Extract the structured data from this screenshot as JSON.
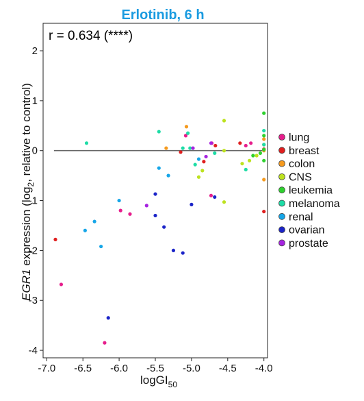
{
  "chart_data": {
    "type": "scatter",
    "title": "Erlotinib, 6 h",
    "title_color": "#1a9be0",
    "annotation": "r = 0.634 (****)",
    "xlabel": {
      "base": "logGI",
      "sub": "50"
    },
    "ylabel": {
      "italic": "EGR1",
      "mid": " expression (log",
      "sub": "2",
      "end": ", relative to control)"
    },
    "xlim": [
      -7.05,
      -3.95
    ],
    "ylim": [
      -4.15,
      2.55
    ],
    "xticks": [
      -7.0,
      -6.5,
      -6.0,
      -5.5,
      -5.0,
      -4.5,
      -4.0
    ],
    "xtick_labels": [
      "-7.0",
      "-6.5",
      "-6.0",
      "-5.5",
      "-5.0",
      "-4.5",
      "-4.0"
    ],
    "yticks": [
      -4,
      -3,
      -2,
      -1,
      0,
      1,
      2
    ],
    "ytick_labels": [
      "-4",
      "-3",
      "-2",
      "-1",
      "0",
      "1",
      "2"
    ],
    "reference_line_y": 0,
    "grid": false,
    "legend_position": "right",
    "series": [
      {
        "name": "lung",
        "color": "#e61e8c",
        "points": [
          [
            -6.8,
            -2.68
          ],
          [
            -6.2,
            -3.85
          ],
          [
            -5.98,
            -1.2
          ],
          [
            -5.85,
            -1.27
          ],
          [
            -5.08,
            0.3
          ],
          [
            -4.72,
            0.15
          ],
          [
            -4.73,
            -0.9
          ],
          [
            -4.25,
            0.1
          ],
          [
            -4.18,
            0.15
          ]
        ]
      },
      {
        "name": "breast",
        "color": "#e01f1f",
        "points": [
          [
            -6.88,
            -1.78
          ],
          [
            -5.15,
            -0.03
          ],
          [
            -4.83,
            -0.22
          ],
          [
            -4.67,
            0.1
          ],
          [
            -4.33,
            0.15
          ],
          [
            -4.0,
            -1.22
          ],
          [
            -4.0,
            0.03
          ]
        ]
      },
      {
        "name": "colon",
        "color": "#f59a1e",
        "points": [
          [
            -5.35,
            0.05
          ],
          [
            -5.07,
            0.48
          ],
          [
            -4.0,
            0.23
          ],
          [
            -4.0,
            0.12
          ],
          [
            -4.0,
            0.0
          ],
          [
            -4.0,
            -0.58
          ]
        ]
      },
      {
        "name": "CNS",
        "color": "#bde21f",
        "points": [
          [
            -4.55,
            0.6
          ],
          [
            -4.55,
            0.0
          ],
          [
            -4.55,
            -1.03
          ],
          [
            -4.85,
            -0.4
          ],
          [
            -4.9,
            -0.53
          ],
          [
            -4.3,
            -0.26
          ],
          [
            -4.2,
            -0.2
          ],
          [
            -4.1,
            -0.1
          ]
        ]
      },
      {
        "name": "leukemia",
        "color": "#2ed12e",
        "points": [
          [
            -4.0,
            0.75
          ],
          [
            -4.0,
            0.3
          ],
          [
            -4.0,
            0.02
          ],
          [
            -4.0,
            -0.2
          ],
          [
            -4.05,
            -0.05
          ],
          [
            -4.15,
            -0.1
          ]
        ]
      },
      {
        "name": "melanoma",
        "color": "#1edca6",
        "points": [
          [
            -6.45,
            0.15
          ],
          [
            -5.45,
            0.38
          ],
          [
            -5.12,
            0.05
          ],
          [
            -5.02,
            0.05
          ],
          [
            -5.05,
            0.35
          ],
          [
            -4.95,
            -0.28
          ],
          [
            -4.68,
            -0.05
          ],
          [
            -4.25,
            -0.38
          ],
          [
            -4.0,
            0.4
          ],
          [
            -4.0,
            0.12
          ]
        ]
      },
      {
        "name": "renal",
        "color": "#16a6e8",
        "points": [
          [
            -6.47,
            -1.6
          ],
          [
            -6.34,
            -1.42
          ],
          [
            -6.25,
            -1.92
          ],
          [
            -6.0,
            -1.0
          ],
          [
            -5.45,
            -0.35
          ],
          [
            -5.32,
            -0.5
          ],
          [
            -4.9,
            -0.17
          ]
        ]
      },
      {
        "name": "ovarian",
        "color": "#1b24c8",
        "points": [
          [
            -6.15,
            -3.35
          ],
          [
            -5.5,
            -0.87
          ],
          [
            -5.5,
            -1.3
          ],
          [
            -5.38,
            -1.53
          ],
          [
            -5.25,
            -2.0
          ],
          [
            -5.12,
            -2.05
          ],
          [
            -5.0,
            -1.08
          ],
          [
            -4.68,
            -0.93
          ]
        ]
      },
      {
        "name": "prostate",
        "color": "#a623e0",
        "points": [
          [
            -5.62,
            -1.1
          ],
          [
            -4.98,
            0.05
          ],
          [
            -4.8,
            -0.12
          ],
          [
            -4.73,
            0.15
          ]
        ]
      }
    ]
  }
}
